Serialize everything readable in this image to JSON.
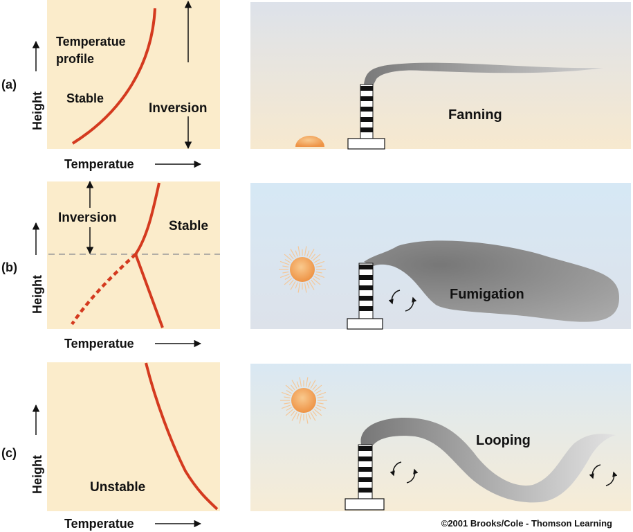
{
  "rows": [
    {
      "letter": "(a)",
      "axis_y": "Height",
      "axis_x": "Temperatue",
      "graph_labels": [
        "Temperatue",
        "profile",
        "Stable",
        "Inversion"
      ],
      "plume_label": "Fanning"
    },
    {
      "letter": "(b)",
      "axis_y": "Height",
      "axis_x": "Temperatue",
      "graph_labels": [
        "Inversion",
        "Stable"
      ],
      "plume_label": "Fumigation"
    },
    {
      "letter": "(c)",
      "axis_y": "Height",
      "axis_x": "Temperatue",
      "graph_labels": [
        "Unstable"
      ],
      "plume_label": "Looping"
    }
  ],
  "credit": "©2001 Brooks/Cole - Thomson Learning",
  "colors": {
    "graph_bg": "#fbeccb",
    "profile_line": "#d43a1f",
    "plume": "#808080",
    "sun": "#f2a25a"
  }
}
